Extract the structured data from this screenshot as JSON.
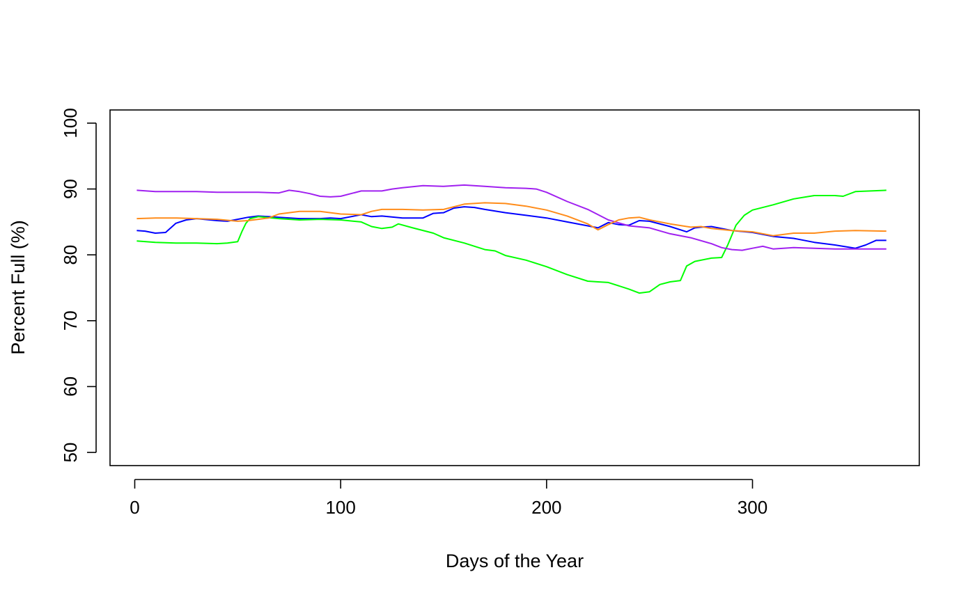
{
  "chart_data": {
    "type": "line",
    "title": "",
    "xlabel": "Days of the Year",
    "ylabel": "Percent Full (%)",
    "xlim": [
      -12,
      381
    ],
    "ylim": [
      48,
      102
    ],
    "xticks": [
      0,
      100,
      200,
      300
    ],
    "yticks": [
      50,
      60,
      70,
      80,
      90,
      100
    ],
    "grid": false,
    "legend": "none",
    "series": [
      {
        "color": "#0000ff",
        "x": [
          1,
          5,
          10,
          15,
          20,
          25,
          30,
          40,
          45,
          50,
          55,
          60,
          65,
          70,
          80,
          90,
          95,
          100,
          110,
          115,
          120,
          130,
          140,
          145,
          150,
          155,
          160,
          165,
          170,
          180,
          190,
          200,
          210,
          220,
          225,
          230,
          235,
          240,
          245,
          250,
          260,
          268,
          272,
          275,
          280,
          285,
          290,
          300,
          310,
          320,
          330,
          340,
          350,
          355,
          360,
          365
        ],
        "y": [
          83.7,
          83.6,
          83.3,
          83.4,
          84.8,
          85.3,
          85.5,
          85.2,
          85.1,
          85.4,
          85.7,
          85.9,
          85.8,
          85.7,
          85.5,
          85.5,
          85.6,
          85.5,
          86.1,
          85.8,
          85.9,
          85.6,
          85.6,
          86.3,
          86.4,
          87.1,
          87.3,
          87.2,
          86.9,
          86.4,
          86.0,
          85.6,
          85.0,
          84.4,
          84.1,
          84.9,
          84.6,
          84.5,
          85.2,
          85.1,
          84.3,
          83.5,
          84.1,
          84.2,
          84.3,
          84.0,
          83.7,
          83.4,
          82.8,
          82.5,
          81.9,
          81.5,
          81.0,
          81.5,
          82.2,
          82.2
        ]
      },
      {
        "color": "#00ff00",
        "x": [
          1,
          10,
          20,
          30,
          40,
          45,
          50,
          52,
          54,
          56,
          60,
          70,
          80,
          90,
          100,
          110,
          115,
          120,
          125,
          128,
          135,
          145,
          150,
          160,
          170,
          175,
          180,
          190,
          200,
          210,
          220,
          225,
          230,
          240,
          245,
          250,
          255,
          260,
          265,
          268,
          272,
          280,
          285,
          288,
          292,
          296,
          300,
          310,
          320,
          330,
          340,
          344,
          350,
          365
        ],
        "y": [
          82.1,
          81.9,
          81.8,
          81.8,
          81.7,
          81.8,
          82.0,
          83.5,
          84.8,
          85.5,
          85.8,
          85.5,
          85.3,
          85.4,
          85.3,
          85.0,
          84.3,
          84.0,
          84.2,
          84.7,
          84.1,
          83.3,
          82.6,
          81.8,
          80.8,
          80.6,
          79.9,
          79.2,
          78.2,
          77.0,
          76.0,
          75.9,
          75.8,
          74.8,
          74.2,
          74.4,
          75.5,
          75.9,
          76.1,
          78.3,
          79.0,
          79.5,
          79.6,
          81.5,
          84.5,
          86.0,
          86.8,
          87.6,
          88.5,
          89.0,
          89.0,
          88.9,
          89.6,
          89.8
        ]
      },
      {
        "color": "#a020f0",
        "x": [
          1,
          10,
          20,
          30,
          40,
          50,
          60,
          70,
          75,
          80,
          85,
          90,
          95,
          100,
          110,
          120,
          125,
          130,
          140,
          150,
          160,
          170,
          180,
          190,
          195,
          200,
          210,
          220,
          230,
          240,
          250,
          260,
          270,
          280,
          285,
          290,
          295,
          300,
          305,
          310,
          320,
          330,
          340,
          350,
          365
        ],
        "y": [
          89.8,
          89.6,
          89.6,
          89.6,
          89.5,
          89.5,
          89.5,
          89.4,
          89.8,
          89.6,
          89.3,
          88.9,
          88.8,
          88.9,
          89.7,
          89.7,
          90.0,
          90.2,
          90.5,
          90.4,
          90.6,
          90.4,
          90.2,
          90.1,
          90.0,
          89.5,
          88.1,
          86.9,
          85.3,
          84.4,
          84.1,
          83.2,
          82.6,
          81.7,
          81.1,
          80.8,
          80.7,
          81.0,
          81.3,
          80.9,
          81.1,
          81.0,
          80.9,
          80.9,
          80.9
        ]
      },
      {
        "color": "#ff8c1a",
        "x": [
          1,
          10,
          20,
          30,
          40,
          50,
          55,
          60,
          65,
          70,
          80,
          90,
          100,
          110,
          115,
          120,
          130,
          140,
          150,
          160,
          170,
          180,
          190,
          200,
          210,
          220,
          225,
          230,
          235,
          240,
          245,
          250,
          260,
          270,
          275,
          280,
          290,
          300,
          310,
          320,
          330,
          340,
          350,
          365
        ],
        "y": [
          85.5,
          85.6,
          85.6,
          85.5,
          85.4,
          85.1,
          85.2,
          85.4,
          85.6,
          86.2,
          86.6,
          86.6,
          86.2,
          86.1,
          86.6,
          86.9,
          86.9,
          86.8,
          86.9,
          87.7,
          87.9,
          87.8,
          87.4,
          86.8,
          85.9,
          84.7,
          83.8,
          84.6,
          85.3,
          85.6,
          85.7,
          85.3,
          84.7,
          84.2,
          84.3,
          84.0,
          83.7,
          83.5,
          82.9,
          83.3,
          83.3,
          83.6,
          83.7,
          83.6
        ]
      }
    ]
  }
}
